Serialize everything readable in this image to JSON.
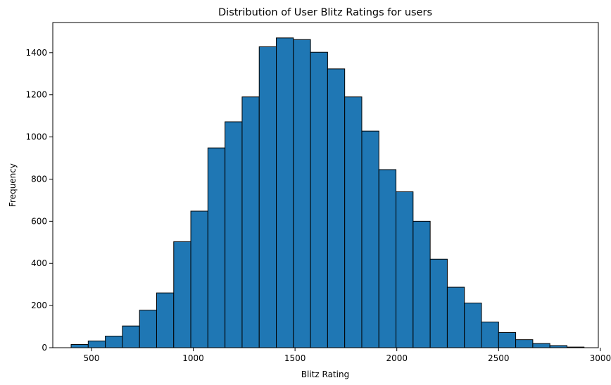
{
  "chart_data": {
    "type": "bar",
    "title": "Distribution of User Blitz Ratings for users",
    "xlabel": "Blitz Rating",
    "ylabel": "Frequency",
    "xlim": [
      310,
      2990
    ],
    "ylim": [
      0,
      1543
    ],
    "xticks": [
      500,
      1000,
      1500,
      2000,
      2500,
      3000
    ],
    "yticks": [
      0,
      200,
      400,
      600,
      800,
      1000,
      1200,
      1400
    ],
    "grid": false,
    "bar_color": "#1f77b4",
    "edge_color": "#000000",
    "bins": [
      {
        "start": 400,
        "end": 484,
        "value": 15
      },
      {
        "start": 484,
        "end": 568,
        "value": 32
      },
      {
        "start": 568,
        "end": 652,
        "value": 55
      },
      {
        "start": 652,
        "end": 736,
        "value": 103
      },
      {
        "start": 736,
        "end": 820,
        "value": 178
      },
      {
        "start": 820,
        "end": 904,
        "value": 260
      },
      {
        "start": 904,
        "end": 988,
        "value": 503
      },
      {
        "start": 988,
        "end": 1072,
        "value": 648
      },
      {
        "start": 1072,
        "end": 1156,
        "value": 948
      },
      {
        "start": 1156,
        "end": 1240,
        "value": 1072
      },
      {
        "start": 1240,
        "end": 1324,
        "value": 1190
      },
      {
        "start": 1324,
        "end": 1408,
        "value": 1428
      },
      {
        "start": 1408,
        "end": 1492,
        "value": 1470
      },
      {
        "start": 1492,
        "end": 1576,
        "value": 1462
      },
      {
        "start": 1576,
        "end": 1660,
        "value": 1402
      },
      {
        "start": 1660,
        "end": 1744,
        "value": 1323
      },
      {
        "start": 1744,
        "end": 1828,
        "value": 1190
      },
      {
        "start": 1828,
        "end": 1912,
        "value": 1028
      },
      {
        "start": 1912,
        "end": 1996,
        "value": 845
      },
      {
        "start": 1996,
        "end": 2080,
        "value": 740
      },
      {
        "start": 2080,
        "end": 2164,
        "value": 600
      },
      {
        "start": 2164,
        "end": 2248,
        "value": 420
      },
      {
        "start": 2248,
        "end": 2332,
        "value": 287
      },
      {
        "start": 2332,
        "end": 2416,
        "value": 212
      },
      {
        "start": 2416,
        "end": 2500,
        "value": 122
      },
      {
        "start": 2500,
        "end": 2584,
        "value": 72
      },
      {
        "start": 2584,
        "end": 2668,
        "value": 38
      },
      {
        "start": 2668,
        "end": 2752,
        "value": 20
      },
      {
        "start": 2752,
        "end": 2836,
        "value": 10
      },
      {
        "start": 2836,
        "end": 2920,
        "value": 3
      }
    ]
  }
}
